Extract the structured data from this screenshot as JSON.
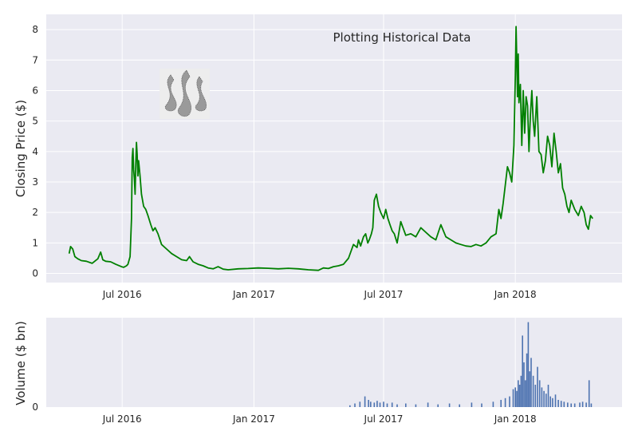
{
  "chart_data": [
    {
      "type": "line",
      "title": "Plotting Historical Data",
      "xlabel": "",
      "ylabel": "Closing Price ($)",
      "x_ticks": [
        "Jul 2016",
        "Jan 2017",
        "Jul 2017",
        "Jan 2018"
      ],
      "x_tick_dates": [
        "2016-07-01",
        "2017-01-01",
        "2017-07-01",
        "2018-01-01"
      ],
      "xlim": [
        "2016-03-17",
        "2018-05-30"
      ],
      "y_ticks": [
        "0",
        "1",
        "2",
        "3",
        "4",
        "5",
        "6",
        "7",
        "8"
      ],
      "ylim": [
        -0.3,
        8.5
      ],
      "grid": true,
      "line_color": "#008000",
      "background": "#EAEAF2",
      "logo": "steem-logo",
      "series": [
        {
          "x": [
            "2016-04-18",
            "2016-04-20",
            "2016-04-23",
            "2016-04-26",
            "2016-04-30",
            "2016-05-05",
            "2016-05-12",
            "2016-05-20",
            "2016-05-28",
            "2016-06-01",
            "2016-06-04",
            "2016-06-08",
            "2016-06-15",
            "2016-06-22",
            "2016-06-30",
            "2016-07-03",
            "2016-07-07",
            "2016-07-09",
            "2016-07-12",
            "2016-07-14",
            "2016-07-15",
            "2016-07-16",
            "2016-07-17",
            "2016-07-18",
            "2016-07-19",
            "2016-07-20",
            "2016-07-21",
            "2016-07-22",
            "2016-07-23",
            "2016-07-24",
            "2016-07-26",
            "2016-07-28",
            "2016-07-31",
            "2016-08-03",
            "2016-08-06",
            "2016-08-10",
            "2016-08-13",
            "2016-08-16",
            "2016-08-20",
            "2016-08-25",
            "2016-09-01",
            "2016-09-08",
            "2016-09-15",
            "2016-09-22",
            "2016-09-29",
            "2016-10-03",
            "2016-10-08",
            "2016-10-15",
            "2016-10-22",
            "2016-10-29",
            "2016-11-05",
            "2016-11-12",
            "2016-11-19",
            "2016-11-26",
            "2016-12-10",
            "2016-12-24",
            "2017-01-07",
            "2017-01-21",
            "2017-02-04",
            "2017-02-18",
            "2017-03-04",
            "2017-03-18",
            "2017-04-01",
            "2017-04-08",
            "2017-04-15",
            "2017-04-22",
            "2017-04-29",
            "2017-05-06",
            "2017-05-13",
            "2017-05-20",
            "2017-05-25",
            "2017-05-27",
            "2017-05-30",
            "2017-06-03",
            "2017-06-06",
            "2017-06-09",
            "2017-06-11",
            "2017-06-14",
            "2017-06-16",
            "2017-06-18",
            "2017-06-21",
            "2017-06-24",
            "2017-06-27",
            "2017-07-01",
            "2017-07-04",
            "2017-07-07",
            "2017-07-10",
            "2017-07-13",
            "2017-07-16",
            "2017-07-20",
            "2017-07-25",
            "2017-08-01",
            "2017-08-08",
            "2017-08-15",
            "2017-08-22",
            "2017-08-29",
            "2017-09-05",
            "2017-09-12",
            "2017-09-19",
            "2017-09-26",
            "2017-10-03",
            "2017-10-10",
            "2017-10-17",
            "2017-10-24",
            "2017-10-31",
            "2017-11-07",
            "2017-11-14",
            "2017-11-21",
            "2017-11-28",
            "2017-12-05",
            "2017-12-09",
            "2017-12-12",
            "2017-12-15",
            "2017-12-18",
            "2017-12-21",
            "2017-12-24",
            "2017-12-27",
            "2017-12-30",
            "2018-01-01",
            "2018-01-02",
            "2018-01-03",
            "2018-01-04",
            "2018-01-05",
            "2018-01-06",
            "2018-01-08",
            "2018-01-10",
            "2018-01-12",
            "2018-01-14",
            "2018-01-16",
            "2018-01-18",
            "2018-01-20",
            "2018-01-22",
            "2018-01-24",
            "2018-01-26",
            "2018-01-28",
            "2018-01-31",
            "2018-02-03",
            "2018-02-06",
            "2018-02-09",
            "2018-02-12",
            "2018-02-15",
            "2018-02-18",
            "2018-02-21",
            "2018-02-24",
            "2018-02-27",
            "2018-03-02",
            "2018-03-05",
            "2018-03-08",
            "2018-03-11",
            "2018-03-14",
            "2018-03-17",
            "2018-03-20",
            "2018-03-25",
            "2018-03-30",
            "2018-04-03",
            "2018-04-07",
            "2018-04-10",
            "2018-04-13",
            "2018-04-16",
            "2018-04-19"
          ],
          "values": [
            0.65,
            0.88,
            0.8,
            0.55,
            0.48,
            0.42,
            0.4,
            0.33,
            0.48,
            0.7,
            0.45,
            0.4,
            0.38,
            0.3,
            0.22,
            0.2,
            0.25,
            0.3,
            0.55,
            1.8,
            3.8,
            4.1,
            3.4,
            3.1,
            2.6,
            3.6,
            4.3,
            3.9,
            3.2,
            3.7,
            3.2,
            2.6,
            2.2,
            2.1,
            1.9,
            1.6,
            1.4,
            1.5,
            1.3,
            0.95,
            0.8,
            0.65,
            0.55,
            0.45,
            0.42,
            0.55,
            0.38,
            0.3,
            0.25,
            0.18,
            0.15,
            0.22,
            0.14,
            0.12,
            0.15,
            0.16,
            0.18,
            0.17,
            0.15,
            0.17,
            0.15,
            0.12,
            0.1,
            0.18,
            0.16,
            0.22,
            0.25,
            0.3,
            0.5,
            0.95,
            0.85,
            1.1,
            0.9,
            1.2,
            1.3,
            1.0,
            1.1,
            1.3,
            1.5,
            2.4,
            2.6,
            2.2,
            2.0,
            1.8,
            2.1,
            1.8,
            1.6,
            1.4,
            1.3,
            1.0,
            1.7,
            1.25,
            1.3,
            1.2,
            1.5,
            1.35,
            1.2,
            1.1,
            1.6,
            1.2,
            1.1,
            1.0,
            0.95,
            0.9,
            0.88,
            0.95,
            0.9,
            1.0,
            1.2,
            1.3,
            2.1,
            1.8,
            2.3,
            2.9,
            3.5,
            3.3,
            3.0,
            4.2,
            6.5,
            8.1,
            7.0,
            5.8,
            7.2,
            5.6,
            6.2,
            4.2,
            6.0,
            4.6,
            5.8,
            5.5,
            4.0,
            5.2,
            6.0,
            5.0,
            4.5,
            5.8,
            4.0,
            3.9,
            3.3,
            3.7,
            4.5,
            4.2,
            3.5,
            4.6,
            4.0,
            3.3,
            3.6,
            2.8,
            2.6,
            2.2,
            2.0,
            2.4,
            2.1,
            1.9,
            2.2,
            2.0,
            1.6,
            1.45,
            1.9,
            1.8
          ]
        }
      ]
    },
    {
      "type": "bar",
      "title": "",
      "xlabel": "",
      "ylabel": "Volume ($ bn)",
      "x_ticks": [
        "Jul 2016",
        "Jan 2017",
        "Jul 2017",
        "Jan 2018"
      ],
      "x_tick_dates": [
        "2016-07-01",
        "2017-01-01",
        "2017-07-01",
        "2018-01-01"
      ],
      "xlim": [
        "2016-03-17",
        "2018-05-30"
      ],
      "y_ticks": [
        "0"
      ],
      "ylim": [
        0,
        1.0
      ],
      "grid": true,
      "bar_color": "#4C72B0",
      "background": "#EAEAF2",
      "x": [
        "2017-05-15",
        "2017-05-22",
        "2017-05-29",
        "2017-06-05",
        "2017-06-10",
        "2017-06-13",
        "2017-06-18",
        "2017-06-22",
        "2017-06-26",
        "2017-07-01",
        "2017-07-06",
        "2017-07-13",
        "2017-07-20",
        "2017-08-01",
        "2017-08-15",
        "2017-09-01",
        "2017-09-15",
        "2017-10-01",
        "2017-10-15",
        "2017-11-01",
        "2017-11-15",
        "2017-12-01",
        "2017-12-12",
        "2017-12-18",
        "2017-12-24",
        "2017-12-29",
        "2018-01-01",
        "2018-01-03",
        "2018-01-05",
        "2018-01-07",
        "2018-01-09",
        "2018-01-11",
        "2018-01-13",
        "2018-01-15",
        "2018-01-17",
        "2018-01-19",
        "2018-01-21",
        "2018-01-23",
        "2018-01-26",
        "2018-01-29",
        "2018-02-01",
        "2018-02-04",
        "2018-02-07",
        "2018-02-10",
        "2018-02-13",
        "2018-02-16",
        "2018-02-19",
        "2018-02-22",
        "2018-02-26",
        "2018-03-02",
        "2018-03-06",
        "2018-03-10",
        "2018-03-15",
        "2018-03-20",
        "2018-03-25",
        "2018-04-01",
        "2018-04-05",
        "2018-04-10",
        "2018-04-14",
        "2018-04-17"
      ],
      "values": [
        0.02,
        0.04,
        0.06,
        0.12,
        0.08,
        0.06,
        0.05,
        0.07,
        0.05,
        0.06,
        0.04,
        0.05,
        0.03,
        0.04,
        0.03,
        0.05,
        0.03,
        0.04,
        0.03,
        0.05,
        0.04,
        0.06,
        0.08,
        0.1,
        0.12,
        0.2,
        0.22,
        0.18,
        0.3,
        0.25,
        0.35,
        0.8,
        0.5,
        0.3,
        0.6,
        0.95,
        0.4,
        0.55,
        0.35,
        0.25,
        0.45,
        0.3,
        0.22,
        0.18,
        0.15,
        0.25,
        0.12,
        0.1,
        0.14,
        0.08,
        0.07,
        0.06,
        0.05,
        0.04,
        0.04,
        0.05,
        0.06,
        0.05,
        0.3,
        0.04
      ]
    }
  ]
}
